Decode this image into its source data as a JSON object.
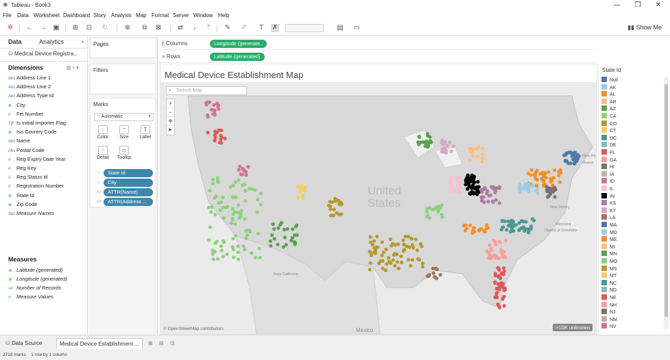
{
  "window": {
    "title": "Tableau - Book3",
    "min": "—",
    "max": "❐",
    "close": "✕"
  },
  "menu": [
    "File",
    "Data",
    "Worksheet",
    "Dashboard",
    "Story",
    "Analysis",
    "Map",
    "Format",
    "Server",
    "Window",
    "Help"
  ],
  "toolbar": {
    "show_me": "Show Me"
  },
  "left": {
    "tab_data": "Data",
    "tab_analytics": "Analytics",
    "datasource": "Medical Device Registra...",
    "dimensions_title": "Dimensions",
    "dimensions": [
      {
        "icon": "Abc",
        "label": "Address Line 1"
      },
      {
        "icon": "Abc",
        "label": "Address Line 2"
      },
      {
        "icon": "Abc",
        "label": "Address Type Id"
      },
      {
        "icon": "⊕",
        "label": "City"
      },
      {
        "icon": "#",
        "label": "Fei Number"
      },
      {
        "icon": "T|F",
        "label": "Is Initial Importer Flag"
      },
      {
        "icon": "⊕",
        "label": "Iso Country Code"
      },
      {
        "icon": "Abc",
        "label": "Name"
      },
      {
        "icon": "Abc",
        "label": "Postal Code"
      },
      {
        "icon": "#",
        "label": "Reg Expiry Date Year"
      },
      {
        "icon": "#",
        "label": "Reg Key"
      },
      {
        "icon": "#",
        "label": "Reg Status Id"
      },
      {
        "icon": "#",
        "label": "Registration Number"
      },
      {
        "icon": "⊕",
        "label": "State Id"
      },
      {
        "icon": "⊕",
        "label": "Zip Code"
      },
      {
        "icon": "Abc",
        "label": "Measure Names"
      }
    ],
    "measures_title": "Measures",
    "measures": [
      {
        "icon": "⊕",
        "label": "Latitude (generated)"
      },
      {
        "icon": "⊕",
        "label": "Longitude (generated)"
      },
      {
        "icon": "=#",
        "label": "Number of Records"
      },
      {
        "icon": "#",
        "label": "Measure Values"
      }
    ]
  },
  "cards": {
    "pages": "Pages",
    "filters": "Filters",
    "marks": "Marks",
    "mark_type": "Automatic",
    "mark_buttons": [
      "Color",
      "Size",
      "Label",
      "Detail",
      "Tooltip"
    ],
    "pills": [
      "State Id",
      "City",
      "ATTR(Name)",
      "ATTR(Address ..."
    ]
  },
  "shelves": {
    "columns_label": "Columns",
    "columns_pill": "Longitude (generate..",
    "rows_label": "Rows",
    "rows_pill": "Latitude (generated)"
  },
  "view": {
    "title": "Medical Device Establishment Map",
    "search_placeholder": "Search Map",
    "credit": "© OpenStreetMap contributors",
    "unknown_badge": ">10K unknown",
    "country_label_1": "United",
    "country_label_2": "States",
    "places": [
      "Baja California",
      "Mexico",
      "New Jersey",
      "Maryland",
      "District of Columbia",
      "Massa",
      "New Ha"
    ]
  },
  "legend": {
    "title": "State Id",
    "items": [
      {
        "label": "Null",
        "color": "#4e79a7"
      },
      {
        "label": "AK",
        "color": "#a0cbe8"
      },
      {
        "label": "AL",
        "color": "#f28e2b"
      },
      {
        "label": "AR",
        "color": "#ffbe7d"
      },
      {
        "label": "AZ",
        "color": "#59a14f"
      },
      {
        "label": "CA",
        "color": "#8cd17d"
      },
      {
        "label": "CO",
        "color": "#b6992d"
      },
      {
        "label": "CT",
        "color": "#f1ce63"
      },
      {
        "label": "DC",
        "color": "#499894"
      },
      {
        "label": "DE",
        "color": "#86bcb6"
      },
      {
        "label": "FL",
        "color": "#e15759"
      },
      {
        "label": "GA",
        "color": "#ff9d9a"
      },
      {
        "label": "HI",
        "color": "#79706e"
      },
      {
        "label": "IA",
        "color": "#bab0ac"
      },
      {
        "label": "ID",
        "color": "#d37295"
      },
      {
        "label": "IL",
        "color": "#fabfd2"
      },
      {
        "label": "IN",
        "color": "#000000"
      },
      {
        "label": "KS",
        "color": "#b07aa1"
      },
      {
        "label": "KY",
        "color": "#d4a6c8"
      },
      {
        "label": "LA",
        "color": "#9d7660"
      },
      {
        "label": "MA",
        "color": "#4e79a7"
      },
      {
        "label": "MD",
        "color": "#a0cbe8"
      },
      {
        "label": "ME",
        "color": "#f28e2b"
      },
      {
        "label": "MI",
        "color": "#ffbe7d"
      },
      {
        "label": "MN",
        "color": "#59a14f"
      },
      {
        "label": "MO",
        "color": "#8cd17d"
      },
      {
        "label": "MS",
        "color": "#b6992d"
      },
      {
        "label": "MT",
        "color": "#f1ce63"
      },
      {
        "label": "NC",
        "color": "#499894"
      },
      {
        "label": "ND",
        "color": "#86bcb6"
      },
      {
        "label": "NE",
        "color": "#e15759"
      },
      {
        "label": "NH",
        "color": "#ff9d9a"
      },
      {
        "label": "NJ",
        "color": "#79706e"
      },
      {
        "label": "NM",
        "color": "#bab0ac"
      },
      {
        "label": "NV",
        "color": "#d37295"
      }
    ]
  },
  "bottom": {
    "tab_datasource": "Data Source",
    "tab_sheet": "Medical Device Establishment ...",
    "status_marks": "2718 marks",
    "status_rows": "1 row by 1 column"
  }
}
